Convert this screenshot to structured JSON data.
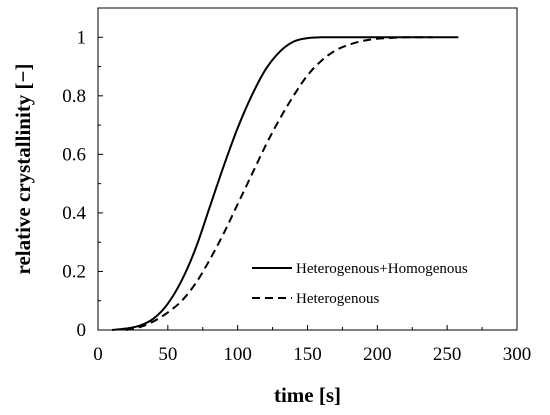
{
  "chart_data": {
    "type": "line",
    "title": "",
    "xlabel": "time [s]",
    "ylabel": "relative crystallinity [−]",
    "xlim": [
      0,
      300
    ],
    "ylim": [
      0,
      1.1
    ],
    "x_ticks": [
      "0",
      "50",
      "100",
      "150",
      "200",
      "250",
      "300"
    ],
    "y_ticks": [
      "0",
      "0.2",
      "0.4",
      "0.6",
      "0.8",
      "1"
    ],
    "grid": false,
    "legend_position": "lower-right",
    "series": [
      {
        "name": "Heterogenous+Homogenous",
        "style": "solid",
        "color": "#000000",
        "x": [
          10,
          20,
          30,
          40,
          50,
          60,
          70,
          80,
          90,
          100,
          110,
          120,
          130,
          140,
          150,
          160,
          170,
          180,
          200,
          220,
          240,
          258
        ],
        "y": [
          0.0,
          0.005,
          0.015,
          0.04,
          0.09,
          0.17,
          0.28,
          0.42,
          0.56,
          0.69,
          0.8,
          0.89,
          0.95,
          0.985,
          0.997,
          1.0,
          1.0,
          1.0,
          1.0,
          1.0,
          1.0,
          1.0
        ]
      },
      {
        "name": "Heterogenous",
        "style": "dashed",
        "color": "#000000",
        "x": [
          20,
          30,
          40,
          50,
          60,
          70,
          80,
          90,
          100,
          110,
          120,
          130,
          140,
          150,
          160,
          170,
          180,
          190,
          200,
          210,
          220,
          230,
          240
        ],
        "y": [
          0.0,
          0.01,
          0.03,
          0.06,
          0.1,
          0.16,
          0.24,
          0.33,
          0.43,
          0.53,
          0.63,
          0.72,
          0.8,
          0.87,
          0.92,
          0.955,
          0.975,
          0.988,
          0.995,
          0.998,
          1.0,
          1.0,
          1.0
        ]
      }
    ]
  }
}
